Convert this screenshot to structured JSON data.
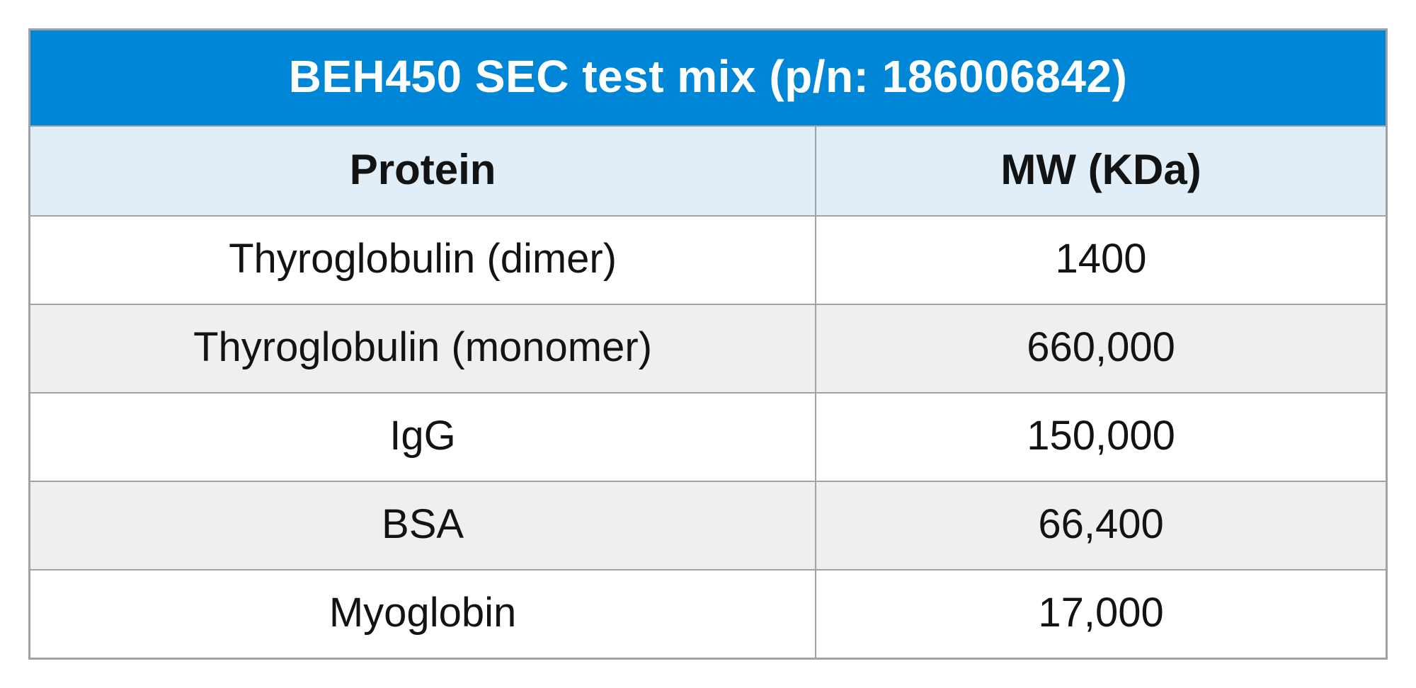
{
  "table": {
    "title": "BEH450 SEC test mix (p/n: 186006842)",
    "columns": [
      "Protein",
      "MW (KDa)"
    ],
    "rows": [
      [
        "Thyroglobulin (dimer)",
        "1400"
      ],
      [
        "Thyroglobulin (monomer)",
        "660,000"
      ],
      [
        "IgG",
        "150,000"
      ],
      [
        "BSA",
        "66,400"
      ],
      [
        "Myoglobin",
        "17,000"
      ]
    ],
    "col_widths_pct": [
      58,
      42
    ],
    "colors": {
      "title_bg": "#0086d6",
      "title_text": "#ffffff",
      "header_bg": "#e1edf7",
      "row_odd_bg": "#ffffff",
      "row_even_bg": "#efefef",
      "border": "#a0a3a6",
      "text": "#131313"
    },
    "font_sizes_pt": {
      "title": 48,
      "header": 45,
      "cell": 44
    },
    "font_weights": {
      "title": 600,
      "header": 700,
      "cell": 400
    }
  }
}
